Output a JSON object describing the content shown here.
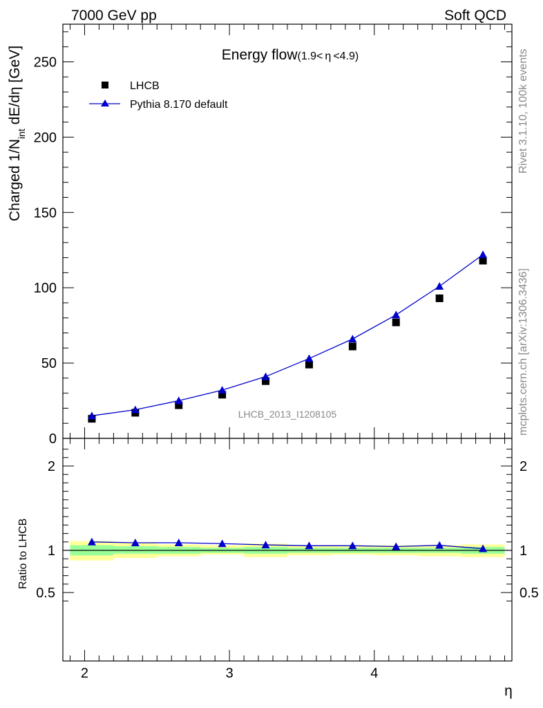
{
  "header": {
    "left": "7000 GeV pp",
    "right": "Soft QCD"
  },
  "side_labels": {
    "rivet": "Rivet 3.1.10,  100k events",
    "mcplots": "mcplots.cern.ch [arXiv:1306.3436]"
  },
  "watermark": "LHCB_2013_I1208105",
  "title_main": "Energy flow",
  "title_sub_a": "(1.9<",
  "title_sub_b": "η",
  "title_sub_c": "<4.9)",
  "ylabel_a": "Charged 1/N",
  "ylabel_sub": "int",
  "ylabel_b": " dE/dη [GeV]",
  "ratio_ylabel": "Ratio to LHCB",
  "xlabel": "η",
  "colors": {
    "mc": "#0000cc",
    "band_inner": "#99ff99",
    "band_outer": "#ffff99",
    "data": "#000000"
  },
  "chart_data": [
    {
      "type": "scatter",
      "title": "Energy flow (1.9<η<4.9)",
      "xlabel": "η",
      "ylabel": "Charged 1/N_int dE/dη [GeV]",
      "xlim": [
        1.85,
        4.95
      ],
      "ylim": [
        0,
        275
      ],
      "yticks": [
        0,
        50,
        100,
        150,
        200,
        250
      ],
      "ytick_labels": [
        "0",
        "50",
        "100",
        "150",
        "200",
        "250"
      ],
      "legend_position": "top-left",
      "series": [
        {
          "name": "LHCB",
          "style": "markers",
          "x": [
            2.05,
            2.35,
            2.65,
            2.95,
            3.25,
            3.55,
            3.85,
            4.15,
            4.45,
            4.75
          ],
          "y": [
            13,
            17,
            22,
            29,
            38,
            49,
            61,
            77,
            93,
            118
          ]
        },
        {
          "name": "Pythia 8.170 default",
          "style": "line-markers",
          "x": [
            2.05,
            2.35,
            2.65,
            2.95,
            3.25,
            3.55,
            3.85,
            4.15,
            4.45,
            4.75
          ],
          "y": [
            15,
            19,
            25,
            32,
            41,
            53,
            66,
            82,
            101,
            122
          ]
        }
      ]
    },
    {
      "type": "line",
      "ylabel": "Ratio to LHCB",
      "xlabel": "η",
      "xlim": [
        1.85,
        4.95
      ],
      "ylim": [
        0.34,
        2.32
      ],
      "xticks": [
        2,
        3,
        4
      ],
      "xtick_labels": [
        "2",
        "3",
        "4"
      ],
      "yticks": [
        0.5,
        1,
        2
      ],
      "ytick_labels": [
        "0.5",
        "1",
        "2"
      ],
      "reference_line": 1,
      "bins": [
        [
          1.9,
          2.2
        ],
        [
          2.2,
          2.5
        ],
        [
          2.5,
          2.8
        ],
        [
          2.8,
          3.1
        ],
        [
          3.1,
          3.4
        ],
        [
          3.4,
          3.7
        ],
        [
          3.7,
          4.0
        ],
        [
          4.0,
          4.3
        ],
        [
          4.3,
          4.6
        ],
        [
          4.6,
          4.9
        ]
      ],
      "band_inner": [
        [
          0.94,
          1.06
        ],
        [
          0.96,
          1.05
        ],
        [
          0.96,
          1.04
        ],
        [
          0.97,
          1.03
        ],
        [
          0.96,
          1.04
        ],
        [
          0.97,
          1.03
        ],
        [
          0.97,
          1.03
        ],
        [
          0.97,
          1.03
        ],
        [
          0.97,
          1.03
        ],
        [
          0.96,
          1.04
        ]
      ],
      "band_outer": [
        [
          0.88,
          1.11
        ],
        [
          0.91,
          1.09
        ],
        [
          0.93,
          1.07
        ],
        [
          0.95,
          1.06
        ],
        [
          0.92,
          1.08
        ],
        [
          0.94,
          1.06
        ],
        [
          0.95,
          1.06
        ],
        [
          0.94,
          1.06
        ],
        [
          0.93,
          1.06
        ],
        [
          0.92,
          1.07
        ]
      ],
      "series": [
        {
          "name": "Pythia 8.170 default",
          "x": [
            2.05,
            2.35,
            2.65,
            2.95,
            3.25,
            3.55,
            3.85,
            4.15,
            4.45,
            4.75
          ],
          "y": [
            1.1,
            1.09,
            1.09,
            1.08,
            1.065,
            1.055,
            1.055,
            1.045,
            1.06,
            1.02
          ]
        }
      ]
    }
  ]
}
